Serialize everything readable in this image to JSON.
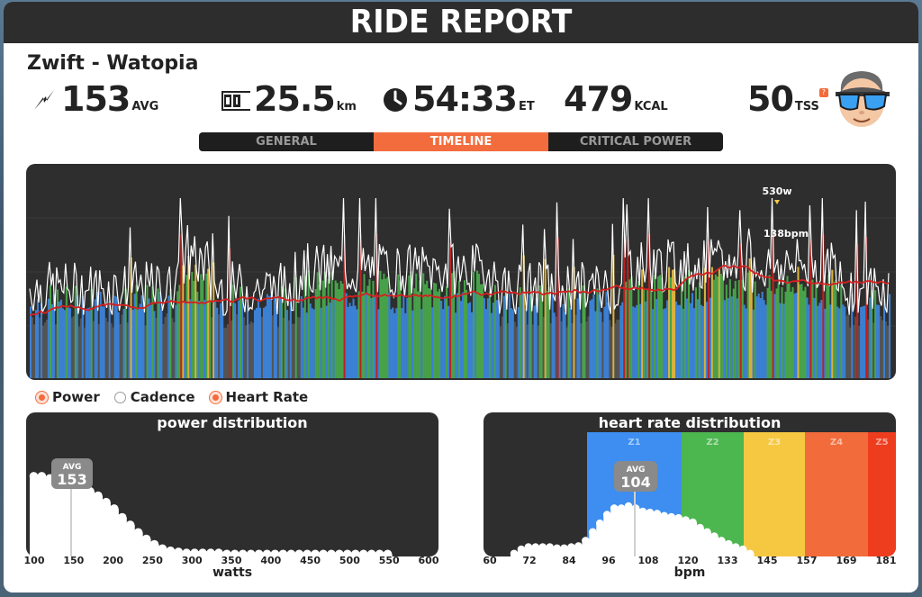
{
  "title": "RIDE REPORT",
  "ride_name": "Zwift - Watopia",
  "stats": {
    "power": {
      "value": "153",
      "unit": "AVG",
      "icon": "lightning-icon"
    },
    "distance": {
      "value": "25.5",
      "unit": "km",
      "icon": "odometer-icon"
    },
    "time": {
      "value": "54:33",
      "unit": "ET",
      "icon": "clock-icon"
    },
    "calories": {
      "value": "479",
      "unit": "KCAL"
    },
    "tss": {
      "value": "50",
      "unit": "TSS",
      "help": "?"
    }
  },
  "tabs": [
    {
      "label": "GENERAL",
      "active": false
    },
    {
      "label": "TIMELINE",
      "active": true
    },
    {
      "label": "CRITICAL POWER",
      "active": false
    }
  ],
  "timeline": {
    "peak_power_label": "530w",
    "peak_hr_label": "138bpm"
  },
  "legend": [
    {
      "label": "Power",
      "selected": true
    },
    {
      "label": "Cadence",
      "selected": false
    },
    {
      "label": "Heart Rate",
      "selected": true
    }
  ],
  "power_distribution": {
    "title": "power distribution",
    "avg_label": "AVG",
    "avg_value": "153",
    "x_ticks": [
      "100",
      "150",
      "200",
      "250",
      "300",
      "350",
      "400",
      "450",
      "500",
      "550",
      "600"
    ],
    "x_label": "watts"
  },
  "hr_distribution": {
    "title": "heart rate distribution",
    "avg_label": "AVG",
    "avg_value": "104",
    "zones": [
      "Z1",
      "Z2",
      "Z3",
      "Z4",
      "Z5"
    ],
    "x_ticks": [
      "60",
      "72",
      "84",
      "96",
      "108",
      "120",
      "133",
      "145",
      "157",
      "169",
      "181"
    ],
    "x_label": "bpm"
  },
  "colors": {
    "accent": "#f36c3d",
    "heart_rate_line": "#d62020",
    "panel_bg": "#2e2e2e",
    "zone_z1": "#3d8ef0",
    "zone_z2": "#4cb64f",
    "zone_z3": "#f6c842",
    "zone_z4": "#f26b3a",
    "zone_z5": "#ee3d1e"
  },
  "chart_data": [
    {
      "type": "bar",
      "title": "power distribution",
      "xlabel": "watts",
      "ylabel": "",
      "categories": [
        "100",
        "110",
        "120",
        "130",
        "140",
        "150",
        "160",
        "170",
        "180",
        "190",
        "200",
        "210",
        "220",
        "230",
        "240",
        "250",
        "260",
        "270",
        "280",
        "290",
        "300",
        "310",
        "320",
        "330",
        "340",
        "350",
        "360",
        "370",
        "380",
        "390",
        "400",
        "410",
        "420",
        "430",
        "440",
        "450",
        "460",
        "470",
        "480",
        "490",
        "500",
        "510",
        "520",
        "530",
        "540"
      ],
      "values": [
        78,
        78,
        76,
        74,
        72,
        70,
        67,
        64,
        60,
        54,
        48,
        40,
        33,
        26,
        20,
        15,
        11,
        9,
        8,
        7,
        7,
        7,
        7,
        7,
        6,
        6,
        6,
        6,
        6,
        6,
        6,
        6,
        6,
        6,
        6,
        6,
        6,
        6,
        6,
        6,
        6,
        6,
        6,
        6,
        6
      ],
      "ylim": [
        0,
        100
      ]
    },
    {
      "type": "bar",
      "title": "heart rate distribution",
      "xlabel": "bpm",
      "ylabel": "",
      "categories": [
        "68",
        "70",
        "72",
        "74",
        "76",
        "78",
        "80",
        "82",
        "84",
        "86",
        "88",
        "90",
        "92",
        "94",
        "96",
        "98",
        "100",
        "102",
        "104",
        "106",
        "108",
        "110",
        "112",
        "114",
        "116",
        "118",
        "120",
        "122",
        "124",
        "126",
        "128",
        "130",
        "132",
        "134"
      ],
      "values": [
        6,
        10,
        12,
        12,
        12,
        12,
        11,
        11,
        12,
        13,
        18,
        26,
        34,
        42,
        48,
        48,
        50,
        48,
        45,
        44,
        43,
        41,
        40,
        39,
        37,
        35,
        30,
        26,
        22,
        18,
        15,
        12,
        10,
        6
      ],
      "ylim": [
        0,
        100
      ]
    }
  ]
}
